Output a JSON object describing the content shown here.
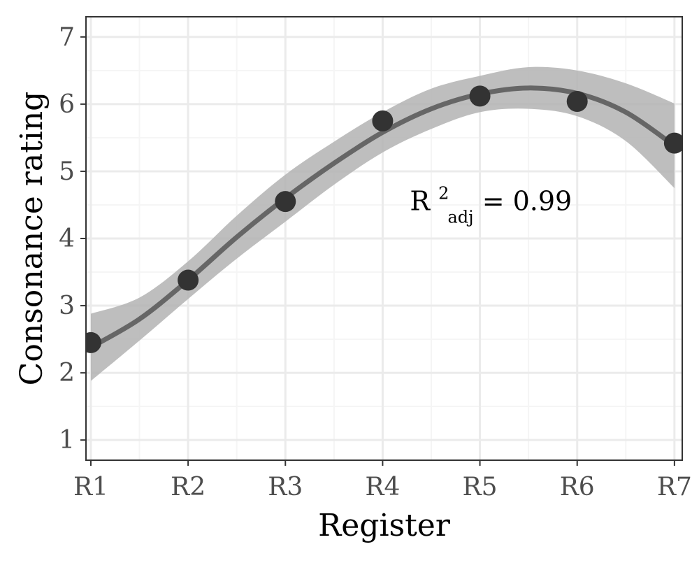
{
  "chart_data": {
    "type": "scatter",
    "xlabel": "Register",
    "ylabel": "Consonance rating",
    "categories": [
      "R1",
      "R2",
      "R3",
      "R4",
      "R5",
      "R6",
      "R7"
    ],
    "x": [
      1,
      2,
      3,
      4,
      5,
      6,
      7
    ],
    "xlim": [
      0.95,
      7.08
    ],
    "ylim": [
      0.7,
      7.3
    ],
    "yticks": [
      1,
      2,
      3,
      4,
      5,
      6,
      7
    ],
    "grid": true,
    "points": [
      {
        "x": 1,
        "y": 2.45
      },
      {
        "x": 2,
        "y": 3.38
      },
      {
        "x": 3,
        "y": 4.55
      },
      {
        "x": 4,
        "y": 5.75
      },
      {
        "x": 5,
        "y": 6.12
      },
      {
        "x": 6,
        "y": 6.04
      },
      {
        "x": 7,
        "y": 5.42
      }
    ],
    "fit_line": {
      "x": [
        1,
        1.5,
        2,
        2.5,
        3,
        3.5,
        4,
        4.5,
        5,
        5.5,
        6,
        6.5,
        7
      ],
      "y": [
        2.38,
        2.8,
        3.38,
        4.02,
        4.6,
        5.12,
        5.58,
        5.93,
        6.15,
        6.24,
        6.16,
        5.88,
        5.38
      ],
      "lower": [
        1.88,
        2.48,
        3.1,
        3.7,
        4.25,
        4.8,
        5.28,
        5.63,
        5.88,
        5.93,
        5.82,
        5.45,
        4.75
      ],
      "upper": [
        2.88,
        3.12,
        3.66,
        4.34,
        4.95,
        5.44,
        5.88,
        6.23,
        6.42,
        6.55,
        6.5,
        6.31,
        6.01
      ]
    },
    "annotation": {
      "base": "R",
      "sup": "2",
      "sub": "adj",
      "rest": " = 0.99",
      "x": 4.28,
      "y": 4.4
    },
    "colors": {
      "points": "#333333",
      "fit_line": "#666666",
      "ribbon": "#b3b3b3",
      "grid_major": "#ebebeb",
      "grid_minor": "#f5f5f5",
      "panel_border": "#333333"
    }
  }
}
